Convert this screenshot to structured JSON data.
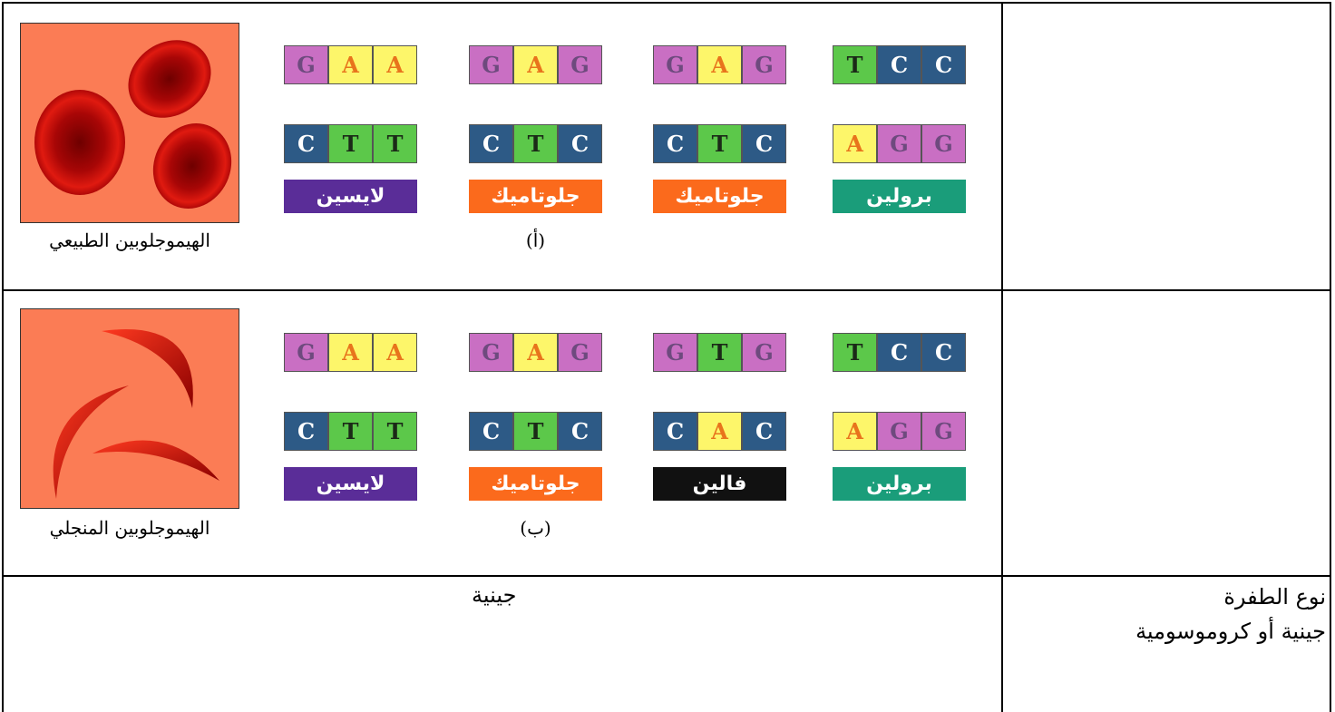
{
  "base_colors": {
    "G": {
      "fill": "#c96fc3",
      "text": "#6e4a7e"
    },
    "A": {
      "fill": "#fdf66a",
      "text": "#e8741c"
    },
    "T": {
      "fill": "#5cc84a",
      "text": "#1b2a18"
    },
    "C": {
      "fill": "#2d5a86",
      "text": "#ffffff"
    }
  },
  "rows": [
    {
      "caption": "الهيموجلوبين الطبيعي",
      "note": "(أ)",
      "codons": [
        {
          "top": [
            "G",
            "A",
            "A"
          ],
          "bottom": [
            "C",
            "T",
            "T"
          ],
          "amino": "لايسين",
          "color": "#5a2d98"
        },
        {
          "top": [
            "G",
            "A",
            "G"
          ],
          "bottom": [
            "C",
            "T",
            "C"
          ],
          "amino": "جلوتاميك",
          "color": "#fb6a1c"
        },
        {
          "top": [
            "G",
            "A",
            "G"
          ],
          "bottom": [
            "C",
            "T",
            "C"
          ],
          "amino": "جلوتاميك",
          "color": "#fb6a1c"
        },
        {
          "top": [
            "T",
            "C",
            "C"
          ],
          "bottom": [
            "A",
            "G",
            "G"
          ],
          "amino": "برولين",
          "color": "#1a9d7a"
        }
      ]
    },
    {
      "caption": "الهيموجلوبين المنجلي",
      "note": "(ب)",
      "codons": [
        {
          "top": [
            "G",
            "A",
            "A"
          ],
          "bottom": [
            "C",
            "T",
            "T"
          ],
          "amino": "لايسين",
          "color": "#5a2d98"
        },
        {
          "top": [
            "G",
            "A",
            "G"
          ],
          "bottom": [
            "C",
            "T",
            "C"
          ],
          "amino": "جلوتاميك",
          "color": "#fb6a1c"
        },
        {
          "top": [
            "G",
            "T",
            "G"
          ],
          "bottom": [
            "C",
            "A",
            "C"
          ],
          "amino": "فالين",
          "color": "#111111"
        },
        {
          "top": [
            "T",
            "C",
            "C"
          ],
          "bottom": [
            "A",
            "G",
            "G"
          ],
          "amino": "برولين",
          "color": "#1a9d7a"
        }
      ]
    }
  ],
  "mutation": {
    "answer": "جينية",
    "label_lines": [
      "نوع الطفرة",
      "جينية أو كروموسومية"
    ]
  }
}
